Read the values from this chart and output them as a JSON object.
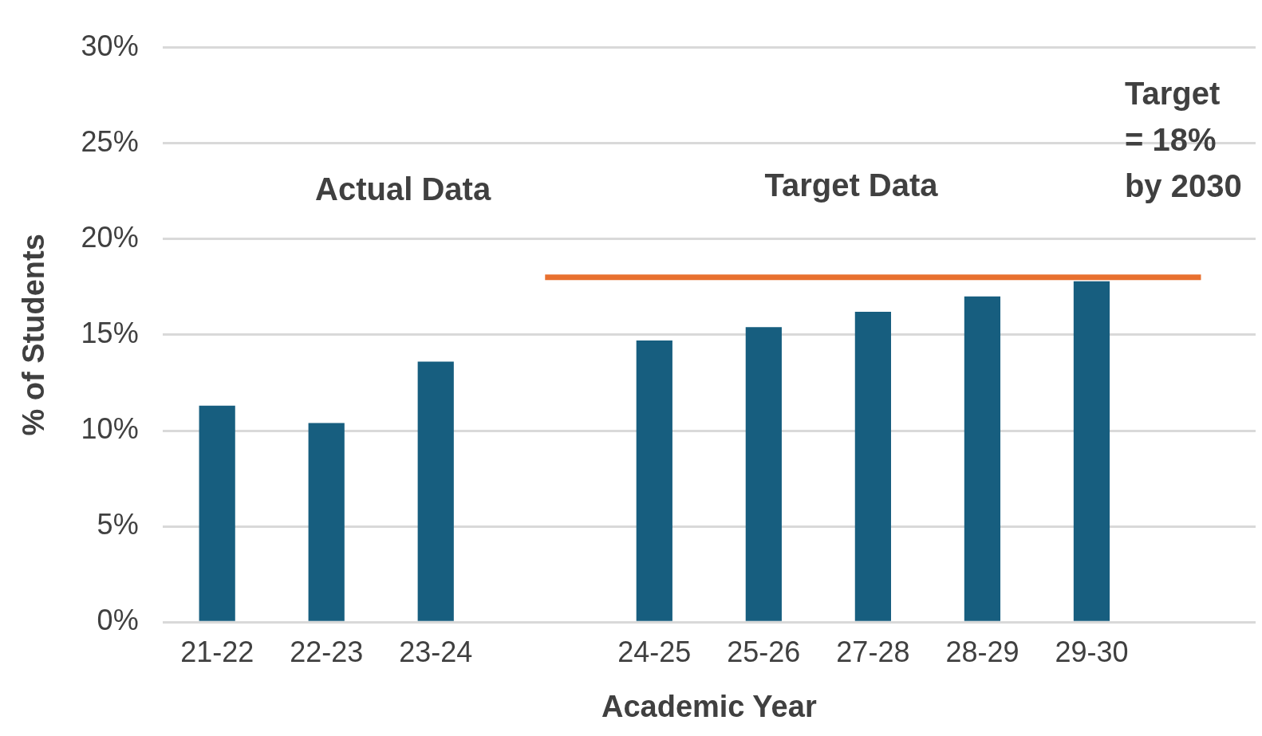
{
  "chart_data": {
    "type": "bar",
    "xlabel": "Academic Year",
    "ylabel": "% of Students",
    "categories": [
      "21-22",
      "22-23",
      "23-24",
      null,
      "24-25",
      "25-26",
      "27-28",
      "28-29",
      "29-30",
      null
    ],
    "series": [
      {
        "color": "#175e7f",
        "values": [
          11.3,
          10.4,
          13.6,
          null,
          14.7,
          15.4,
          16.2,
          17.0,
          17.8,
          null
        ]
      },
      {
        "type": "line",
        "color": "#e8702f",
        "values": [
          null,
          null,
          null,
          18,
          18,
          18,
          18,
          18,
          18,
          18
        ]
      }
    ],
    "ylim": [
      0,
      30
    ],
    "yticks": [
      {
        "value": 0,
        "label": "0%"
      },
      {
        "value": 5,
        "label": "5%"
      },
      {
        "value": 10,
        "label": "10%"
      },
      {
        "value": 15,
        "label": "15%"
      },
      {
        "value": 20,
        "label": "20%"
      },
      {
        "value": 25,
        "label": "25%"
      },
      {
        "value": 30,
        "label": "30%"
      }
    ],
    "grid": "y",
    "legend": false,
    "marker": "none",
    "annotations": [
      "Actual Data",
      "Target Data",
      "Target = 18% by 2030"
    ]
  }
}
